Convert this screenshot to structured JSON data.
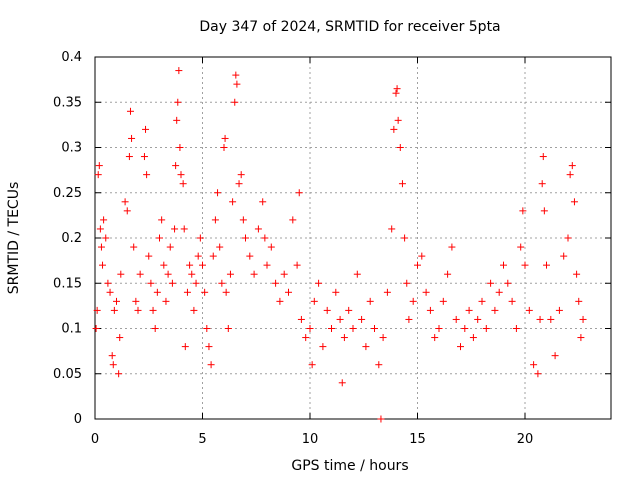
{
  "chart_data": {
    "type": "scatter",
    "title": "Day 347 of 2024, SRMTID for receiver 5pta",
    "xlabel": "GPS time / hours",
    "ylabel": "SRMTID / TECUs",
    "xlim": [
      0,
      24
    ],
    "ylim": [
      0,
      0.4
    ],
    "xticks": [
      0,
      5,
      10,
      15,
      20
    ],
    "xtick_labels": [
      "0",
      "5",
      "10",
      "15",
      "20"
    ],
    "yticks": [
      0,
      0.05,
      0.1,
      0.15,
      0.2,
      0.25,
      0.3,
      0.35,
      0.4
    ],
    "ytick_labels": [
      "0",
      "0.05",
      "0.1",
      "0.15",
      "0.2",
      "0.25",
      "0.3",
      "0.35",
      "0.4"
    ],
    "grid": true,
    "marker": "+",
    "color": "#ff0000",
    "series": [
      {
        "name": "SRMTID",
        "points": [
          [
            0.05,
            0.1
          ],
          [
            0.1,
            0.12
          ],
          [
            0.15,
            0.27
          ],
          [
            0.2,
            0.28
          ],
          [
            0.25,
            0.21
          ],
          [
            0.3,
            0.19
          ],
          [
            0.35,
            0.17
          ],
          [
            0.4,
            0.22
          ],
          [
            0.5,
            0.2
          ],
          [
            0.6,
            0.15
          ],
          [
            0.7,
            0.14
          ],
          [
            0.8,
            0.07
          ],
          [
            0.85,
            0.06
          ],
          [
            0.9,
            0.12
          ],
          [
            1.0,
            0.13
          ],
          [
            1.1,
            0.05
          ],
          [
            1.15,
            0.09
          ],
          [
            1.2,
            0.16
          ],
          [
            1.4,
            0.24
          ],
          [
            1.5,
            0.23
          ],
          [
            1.6,
            0.29
          ],
          [
            1.65,
            0.34
          ],
          [
            1.7,
            0.31
          ],
          [
            1.8,
            0.19
          ],
          [
            1.9,
            0.13
          ],
          [
            2.0,
            0.12
          ],
          [
            2.1,
            0.16
          ],
          [
            2.3,
            0.29
          ],
          [
            2.35,
            0.32
          ],
          [
            2.4,
            0.27
          ],
          [
            2.5,
            0.18
          ],
          [
            2.6,
            0.15
          ],
          [
            2.7,
            0.12
          ],
          [
            2.8,
            0.1
          ],
          [
            2.9,
            0.14
          ],
          [
            3.0,
            0.2
          ],
          [
            3.1,
            0.22
          ],
          [
            3.2,
            0.17
          ],
          [
            3.3,
            0.13
          ],
          [
            3.4,
            0.16
          ],
          [
            3.5,
            0.19
          ],
          [
            3.6,
            0.15
          ],
          [
            3.7,
            0.21
          ],
          [
            3.75,
            0.28
          ],
          [
            3.8,
            0.33
          ],
          [
            3.85,
            0.35
          ],
          [
            3.9,
            0.385
          ],
          [
            3.95,
            0.3
          ],
          [
            4.0,
            0.27
          ],
          [
            4.1,
            0.26
          ],
          [
            4.15,
            0.21
          ],
          [
            4.2,
            0.08
          ],
          [
            4.3,
            0.14
          ],
          [
            4.4,
            0.17
          ],
          [
            4.5,
            0.16
          ],
          [
            4.6,
            0.12
          ],
          [
            4.7,
            0.15
          ],
          [
            4.8,
            0.18
          ],
          [
            4.9,
            0.2
          ],
          [
            5.0,
            0.17
          ],
          [
            5.1,
            0.14
          ],
          [
            5.2,
            0.1
          ],
          [
            5.3,
            0.08
          ],
          [
            5.4,
            0.06
          ],
          [
            5.5,
            0.18
          ],
          [
            5.6,
            0.22
          ],
          [
            5.7,
            0.25
          ],
          [
            5.8,
            0.19
          ],
          [
            5.9,
            0.15
          ],
          [
            6.0,
            0.3
          ],
          [
            6.05,
            0.31
          ],
          [
            6.1,
            0.14
          ],
          [
            6.2,
            0.1
          ],
          [
            6.3,
            0.16
          ],
          [
            6.4,
            0.24
          ],
          [
            6.5,
            0.35
          ],
          [
            6.55,
            0.38
          ],
          [
            6.6,
            0.37
          ],
          [
            6.7,
            0.26
          ],
          [
            6.8,
            0.27
          ],
          [
            6.9,
            0.22
          ],
          [
            7.0,
            0.2
          ],
          [
            7.2,
            0.18
          ],
          [
            7.4,
            0.16
          ],
          [
            7.6,
            0.21
          ],
          [
            7.8,
            0.24
          ],
          [
            7.9,
            0.2
          ],
          [
            8.0,
            0.17
          ],
          [
            8.2,
            0.19
          ],
          [
            8.4,
            0.15
          ],
          [
            8.6,
            0.13
          ],
          [
            8.8,
            0.16
          ],
          [
            9.0,
            0.14
          ],
          [
            9.2,
            0.22
          ],
          [
            9.4,
            0.17
          ],
          [
            9.5,
            0.25
          ],
          [
            9.6,
            0.11
          ],
          [
            9.8,
            0.09
          ],
          [
            10.0,
            0.1
          ],
          [
            10.1,
            0.06
          ],
          [
            10.2,
            0.13
          ],
          [
            10.4,
            0.15
          ],
          [
            10.6,
            0.08
          ],
          [
            10.8,
            0.12
          ],
          [
            11.0,
            0.1
          ],
          [
            11.2,
            0.14
          ],
          [
            11.4,
            0.11
          ],
          [
            11.5,
            0.04
          ],
          [
            11.6,
            0.09
          ],
          [
            11.8,
            0.12
          ],
          [
            12.0,
            0.1
          ],
          [
            12.2,
            0.16
          ],
          [
            12.4,
            0.11
          ],
          [
            12.6,
            0.08
          ],
          [
            12.8,
            0.13
          ],
          [
            13.0,
            0.1
          ],
          [
            13.2,
            0.06
          ],
          [
            13.4,
            0.09
          ],
          [
            13.6,
            0.14
          ],
          [
            13.8,
            0.21
          ],
          [
            13.9,
            0.32
          ],
          [
            14.0,
            0.36
          ],
          [
            14.05,
            0.365
          ],
          [
            14.1,
            0.33
          ],
          [
            14.2,
            0.3
          ],
          [
            14.3,
            0.26
          ],
          [
            14.4,
            0.2
          ],
          [
            14.5,
            0.15
          ],
          [
            14.6,
            0.11
          ],
          [
            14.8,
            0.13
          ],
          [
            15.0,
            0.17
          ],
          [
            15.2,
            0.18
          ],
          [
            15.4,
            0.14
          ],
          [
            15.6,
            0.12
          ],
          [
            15.8,
            0.09
          ],
          [
            16.0,
            0.1
          ],
          [
            16.2,
            0.13
          ],
          [
            16.4,
            0.16
          ],
          [
            16.6,
            0.19
          ],
          [
            16.8,
            0.11
          ],
          [
            17.0,
            0.08
          ],
          [
            17.2,
            0.1
          ],
          [
            17.4,
            0.12
          ],
          [
            17.6,
            0.09
          ],
          [
            17.8,
            0.11
          ],
          [
            18.0,
            0.13
          ],
          [
            18.2,
            0.1
          ],
          [
            18.4,
            0.15
          ],
          [
            18.6,
            0.12
          ],
          [
            18.8,
            0.14
          ],
          [
            19.0,
            0.17
          ],
          [
            19.2,
            0.15
          ],
          [
            19.4,
            0.13
          ],
          [
            19.6,
            0.1
          ],
          [
            19.8,
            0.19
          ],
          [
            19.9,
            0.23
          ],
          [
            20.0,
            0.17
          ],
          [
            20.2,
            0.12
          ],
          [
            20.4,
            0.06
          ],
          [
            20.6,
            0.05
          ],
          [
            20.7,
            0.11
          ],
          [
            20.8,
            0.26
          ],
          [
            20.85,
            0.29
          ],
          [
            20.9,
            0.23
          ],
          [
            21.0,
            0.17
          ],
          [
            21.2,
            0.11
          ],
          [
            21.4,
            0.07
          ],
          [
            21.6,
            0.12
          ],
          [
            21.8,
            0.18
          ],
          [
            22.0,
            0.2
          ],
          [
            22.1,
            0.27
          ],
          [
            22.2,
            0.28
          ],
          [
            22.3,
            0.24
          ],
          [
            22.4,
            0.16
          ],
          [
            22.5,
            0.13
          ],
          [
            22.6,
            0.09
          ],
          [
            22.7,
            0.11
          ],
          [
            13.3,
            0.0
          ]
        ]
      }
    ]
  }
}
